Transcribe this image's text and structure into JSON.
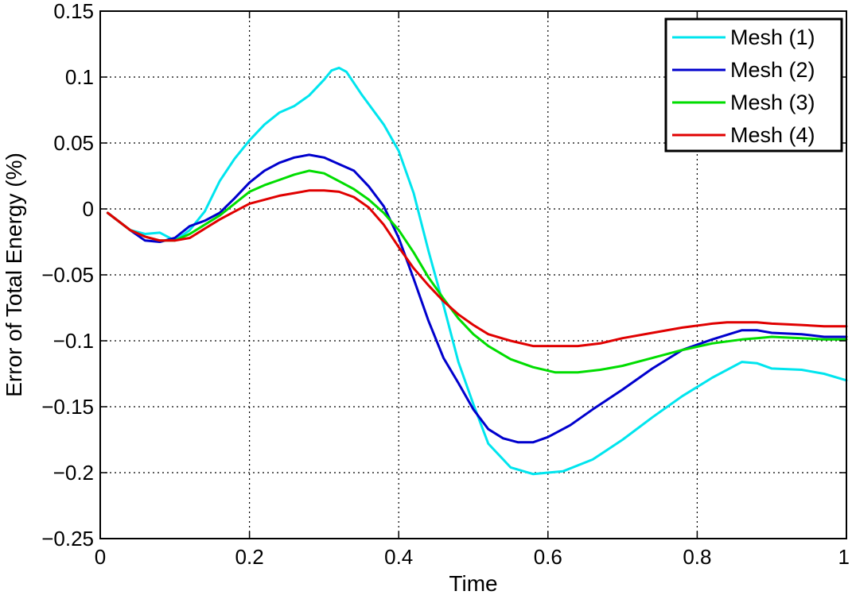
{
  "chart_data": {
    "type": "line",
    "title": "",
    "xlabel": "Time",
    "ylabel": "Error of Total Energy (%)",
    "xlim": [
      0,
      1
    ],
    "ylim": [
      -0.25,
      0.15
    ],
    "grid": true,
    "legend_position": "top-right",
    "xticks": [
      0,
      0.2,
      0.4,
      0.6,
      0.8,
      1
    ],
    "xtick_labels": [
      "0",
      "0.2",
      "0.4",
      "0.6",
      "0.8",
      "1"
    ],
    "yticks": [
      0.15,
      0.1,
      0.05,
      0,
      -0.05,
      -0.1,
      -0.15,
      -0.2,
      -0.25
    ],
    "ytick_labels": [
      "0.15",
      "0.1",
      "0.05",
      "0",
      "−0.05",
      "−0.1",
      "−0.15",
      "−0.2",
      "−0.25"
    ],
    "series": [
      {
        "name": "Mesh (1)",
        "color": "#00e5ee",
        "x": [
          0.01,
          0.04,
          0.06,
          0.08,
          0.1,
          0.12,
          0.14,
          0.16,
          0.18,
          0.2,
          0.22,
          0.24,
          0.26,
          0.28,
          0.3,
          0.31,
          0.32,
          0.33,
          0.35,
          0.38,
          0.4,
          0.42,
          0.44,
          0.46,
          0.48,
          0.5,
          0.52,
          0.55,
          0.58,
          0.62,
          0.66,
          0.7,
          0.74,
          0.78,
          0.82,
          0.86,
          0.88,
          0.9,
          0.94,
          0.97,
          1.0
        ],
        "y": [
          -0.003,
          -0.016,
          -0.019,
          -0.018,
          -0.024,
          -0.016,
          -0.002,
          0.021,
          0.038,
          0.052,
          0.064,
          0.073,
          0.078,
          0.086,
          0.098,
          0.105,
          0.107,
          0.104,
          0.087,
          0.064,
          0.044,
          0.012,
          -0.032,
          -0.073,
          -0.116,
          -0.148,
          -0.178,
          -0.196,
          -0.201,
          -0.199,
          -0.19,
          -0.175,
          -0.158,
          -0.142,
          -0.128,
          -0.116,
          -0.117,
          -0.121,
          -0.122,
          -0.125,
          -0.13
        ]
      },
      {
        "name": "Mesh (2)",
        "color": "#0000cd",
        "x": [
          0.01,
          0.04,
          0.06,
          0.08,
          0.1,
          0.12,
          0.14,
          0.16,
          0.18,
          0.2,
          0.22,
          0.24,
          0.26,
          0.28,
          0.3,
          0.32,
          0.34,
          0.36,
          0.38,
          0.4,
          0.42,
          0.44,
          0.46,
          0.48,
          0.5,
          0.52,
          0.54,
          0.56,
          0.58,
          0.6,
          0.63,
          0.66,
          0.7,
          0.74,
          0.78,
          0.82,
          0.86,
          0.88,
          0.9,
          0.94,
          0.97,
          1.0
        ],
        "y": [
          -0.003,
          -0.016,
          -0.024,
          -0.025,
          -0.022,
          -0.013,
          -0.009,
          -0.003,
          0.008,
          0.02,
          0.029,
          0.035,
          0.039,
          0.041,
          0.039,
          0.034,
          0.029,
          0.017,
          0.002,
          -0.022,
          -0.053,
          -0.085,
          -0.113,
          -0.132,
          -0.152,
          -0.167,
          -0.174,
          -0.177,
          -0.177,
          -0.173,
          -0.164,
          -0.152,
          -0.137,
          -0.121,
          -0.107,
          -0.099,
          -0.092,
          -0.092,
          -0.094,
          -0.095,
          -0.097,
          -0.097
        ]
      },
      {
        "name": "Mesh (3)",
        "color": "#00dd00",
        "x": [
          0.01,
          0.04,
          0.06,
          0.08,
          0.1,
          0.12,
          0.14,
          0.16,
          0.18,
          0.2,
          0.22,
          0.24,
          0.26,
          0.28,
          0.3,
          0.32,
          0.34,
          0.36,
          0.38,
          0.4,
          0.42,
          0.44,
          0.46,
          0.48,
          0.5,
          0.52,
          0.55,
          0.58,
          0.61,
          0.64,
          0.67,
          0.7,
          0.74,
          0.78,
          0.82,
          0.86,
          0.88,
          0.9,
          0.94,
          0.97,
          1.0
        ],
        "y": [
          -0.003,
          -0.016,
          -0.021,
          -0.024,
          -0.024,
          -0.019,
          -0.012,
          -0.005,
          0.004,
          0.013,
          0.018,
          0.022,
          0.026,
          0.029,
          0.027,
          0.021,
          0.015,
          0.007,
          -0.003,
          -0.016,
          -0.033,
          -0.052,
          -0.068,
          -0.083,
          -0.095,
          -0.104,
          -0.114,
          -0.12,
          -0.124,
          -0.124,
          -0.122,
          -0.119,
          -0.113,
          -0.107,
          -0.102,
          -0.099,
          -0.098,
          -0.097,
          -0.098,
          -0.099,
          -0.099
        ]
      },
      {
        "name": "Mesh (4)",
        "color": "#e00000",
        "x": [
          0.01,
          0.04,
          0.06,
          0.08,
          0.1,
          0.12,
          0.14,
          0.16,
          0.18,
          0.2,
          0.22,
          0.24,
          0.26,
          0.28,
          0.3,
          0.32,
          0.34,
          0.36,
          0.38,
          0.4,
          0.42,
          0.44,
          0.46,
          0.48,
          0.5,
          0.52,
          0.55,
          0.58,
          0.61,
          0.64,
          0.67,
          0.7,
          0.74,
          0.78,
          0.82,
          0.84,
          0.86,
          0.88,
          0.9,
          0.94,
          0.97,
          1.0
        ],
        "y": [
          -0.003,
          -0.016,
          -0.021,
          -0.024,
          -0.024,
          -0.022,
          -0.015,
          -0.008,
          -0.002,
          0.004,
          0.007,
          0.01,
          0.012,
          0.014,
          0.014,
          0.013,
          0.009,
          0.001,
          -0.012,
          -0.029,
          -0.045,
          -0.058,
          -0.07,
          -0.08,
          -0.088,
          -0.095,
          -0.1,
          -0.104,
          -0.104,
          -0.104,
          -0.102,
          -0.098,
          -0.094,
          -0.09,
          -0.087,
          -0.086,
          -0.086,
          -0.086,
          -0.087,
          -0.088,
          -0.089,
          -0.089
        ]
      }
    ]
  }
}
